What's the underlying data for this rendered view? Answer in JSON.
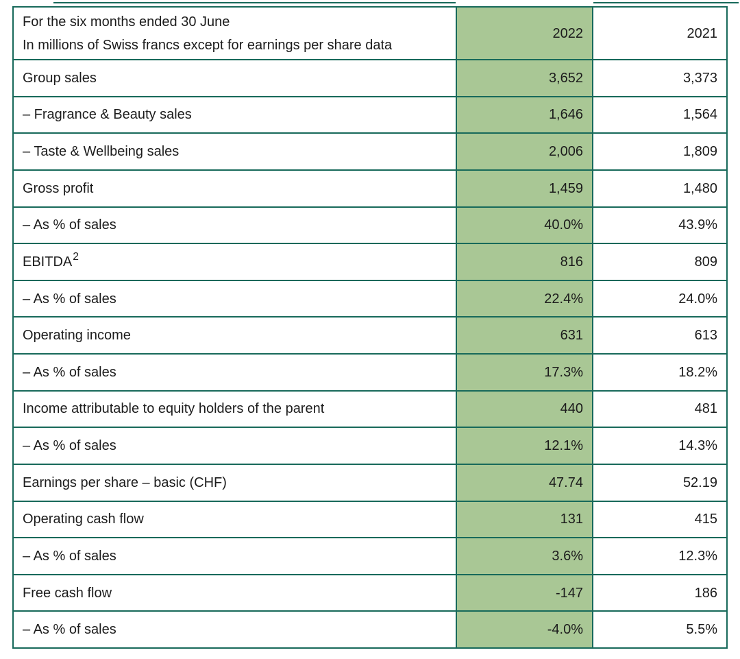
{
  "colors": {
    "highlight_green": "#A9C795",
    "border_teal": "#17695A",
    "text": "#1C1C1C"
  },
  "table": {
    "header": {
      "title_line1": "For the six months ended 30 June",
      "title_line2": "In millions of Swiss francs except for earnings per share data",
      "col_2022": "2022",
      "col_2021": "2021"
    },
    "rows": [
      {
        "label": "Group sales",
        "sup": "",
        "y2022": "3,652",
        "y2021": "3,373"
      },
      {
        "label": "– Fragrance & Beauty sales",
        "sup": "",
        "y2022": "1,646",
        "y2021": "1,564"
      },
      {
        "label": "– Taste & Wellbeing sales",
        "sup": "",
        "y2022": "2,006",
        "y2021": "1,809"
      },
      {
        "label": "Gross profit",
        "sup": "",
        "y2022": "1,459",
        "y2021": "1,480"
      },
      {
        "label": "– As % of sales",
        "sup": "",
        "y2022": "40.0%",
        "y2021": "43.9%"
      },
      {
        "label": "EBITDA",
        "sup": "2",
        "y2022": "816",
        "y2021": "809"
      },
      {
        "label": "– As % of sales",
        "sup": "",
        "y2022": "22.4%",
        "y2021": "24.0%"
      },
      {
        "label": "Operating income",
        "sup": "",
        "y2022": "631",
        "y2021": "613"
      },
      {
        "label": "– As % of sales",
        "sup": "",
        "y2022": "17.3%",
        "y2021": "18.2%"
      },
      {
        "label": "Income attributable to equity holders of the parent",
        "sup": "",
        "y2022": "440",
        "y2021": "481"
      },
      {
        "label": "– As % of sales",
        "sup": "",
        "y2022": "12.1%",
        "y2021": "14.3%"
      },
      {
        "label": "Earnings per share – basic (CHF)",
        "sup": "",
        "y2022": "47.74",
        "y2021": "52.19"
      },
      {
        "label": "Operating cash flow",
        "sup": "",
        "y2022": "131",
        "y2021": "415"
      },
      {
        "label": "– As % of sales",
        "sup": "",
        "y2022": "3.6%",
        "y2021": "12.3%"
      },
      {
        "label": "Free cash flow",
        "sup": "",
        "y2022": "-147",
        "y2021": "186"
      },
      {
        "label": "– As % of sales",
        "sup": "",
        "y2022": "-4.0%",
        "y2021": "5.5%"
      }
    ]
  }
}
